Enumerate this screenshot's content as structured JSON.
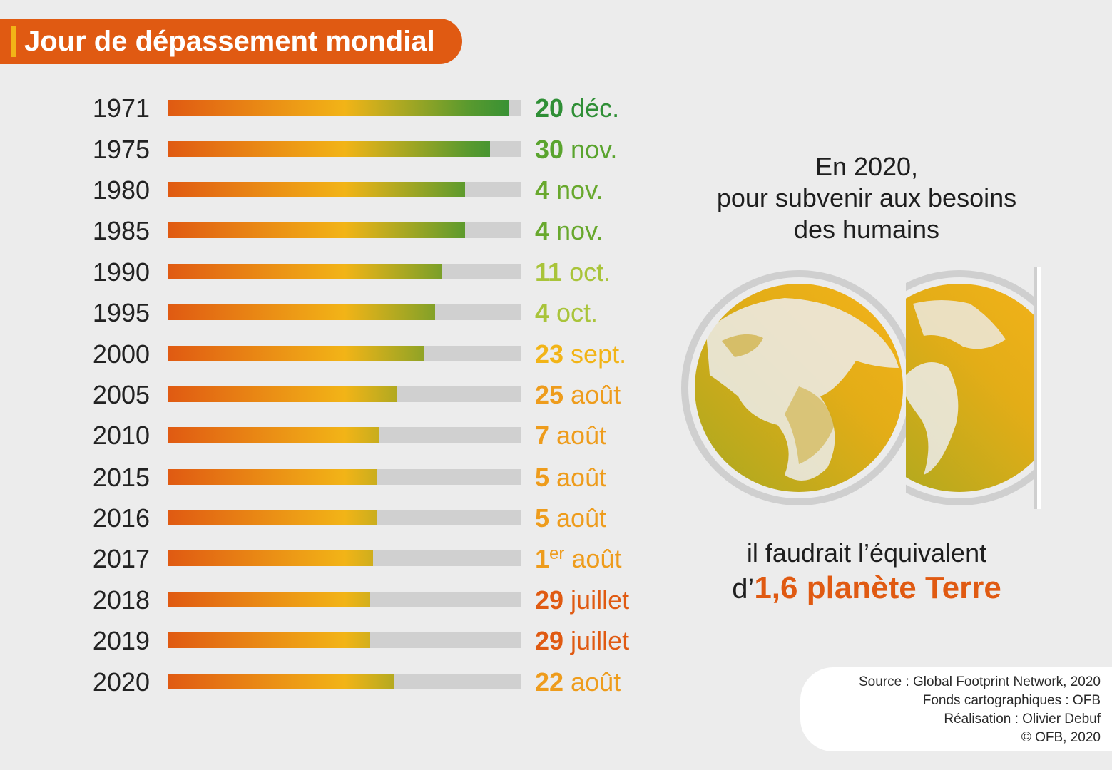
{
  "title": "Jour de dépassement mondial",
  "colors": {
    "accent": "#e05a12",
    "bar_track": "#d0d0d0",
    "gradient": [
      "#e05a12",
      "#f2b417",
      "#5a9a2e",
      "#2f8f36"
    ]
  },
  "chart_data": {
    "type": "bar",
    "orientation": "horizontal",
    "value_description": "day of year of overshoot day (track = full year)",
    "categories": [
      "1971",
      "1975",
      "1980",
      "1985",
      "1990",
      "1995",
      "2000",
      "2005",
      "2010",
      "2015",
      "2016",
      "2017",
      "2018",
      "2019",
      "2020"
    ],
    "values": [
      354,
      334,
      308,
      308,
      284,
      277,
      266,
      237,
      219,
      217,
      217,
      213,
      210,
      210,
      235
    ],
    "xlim": [
      0,
      366
    ],
    "labels": [
      {
        "num": "20",
        "text": " déc.",
        "color": "#2f8f36"
      },
      {
        "num": "30",
        "text": " nov.",
        "color": "#5aa42e"
      },
      {
        "num": "4",
        "text": " nov.",
        "color": "#68a82d"
      },
      {
        "num": "4",
        "text": " nov.",
        "color": "#68a82d"
      },
      {
        "num": "11",
        "text": " oct.",
        "color": "#a9c43a"
      },
      {
        "num": "4",
        "text": " oct.",
        "color": "#a9c43a"
      },
      {
        "num": "23",
        "text": " sept.",
        "color": "#f2b417"
      },
      {
        "num": "25",
        "text": " août",
        "color": "#ee9c1c"
      },
      {
        "num": "7",
        "text": " août",
        "color": "#ee9c1c"
      },
      {
        "num": "5",
        "text": " août",
        "color": "#ee9c1c"
      },
      {
        "num": "5",
        "text": " août",
        "color": "#ee9c1c"
      },
      {
        "num": "1",
        "sup": "er",
        "text": " août",
        "color": "#ee9c1c"
      },
      {
        "num": "29",
        "text": " juillet",
        "color": "#e05a12"
      },
      {
        "num": "29",
        "text": " juillet",
        "color": "#e05a12"
      },
      {
        "num": "22",
        "text": " août",
        "color": "#ee9c1c"
      }
    ]
  },
  "message": {
    "line1": "En 2020,",
    "line2": "pour subvenir aux besoins",
    "line3": "des humains",
    "line4": "il faudrait l’équivalent",
    "line5_prefix": "d’",
    "line5_highlight": "1,6 planète Terre"
  },
  "source": {
    "line1": "Source : Global Footprint Network, 2020",
    "line2": "Fonds cartographiques : OFB",
    "line3": "Réalisation : Olivier Debuf",
    "line4": "© OFB, 2020"
  },
  "globe_icon": "two-earth-globes"
}
